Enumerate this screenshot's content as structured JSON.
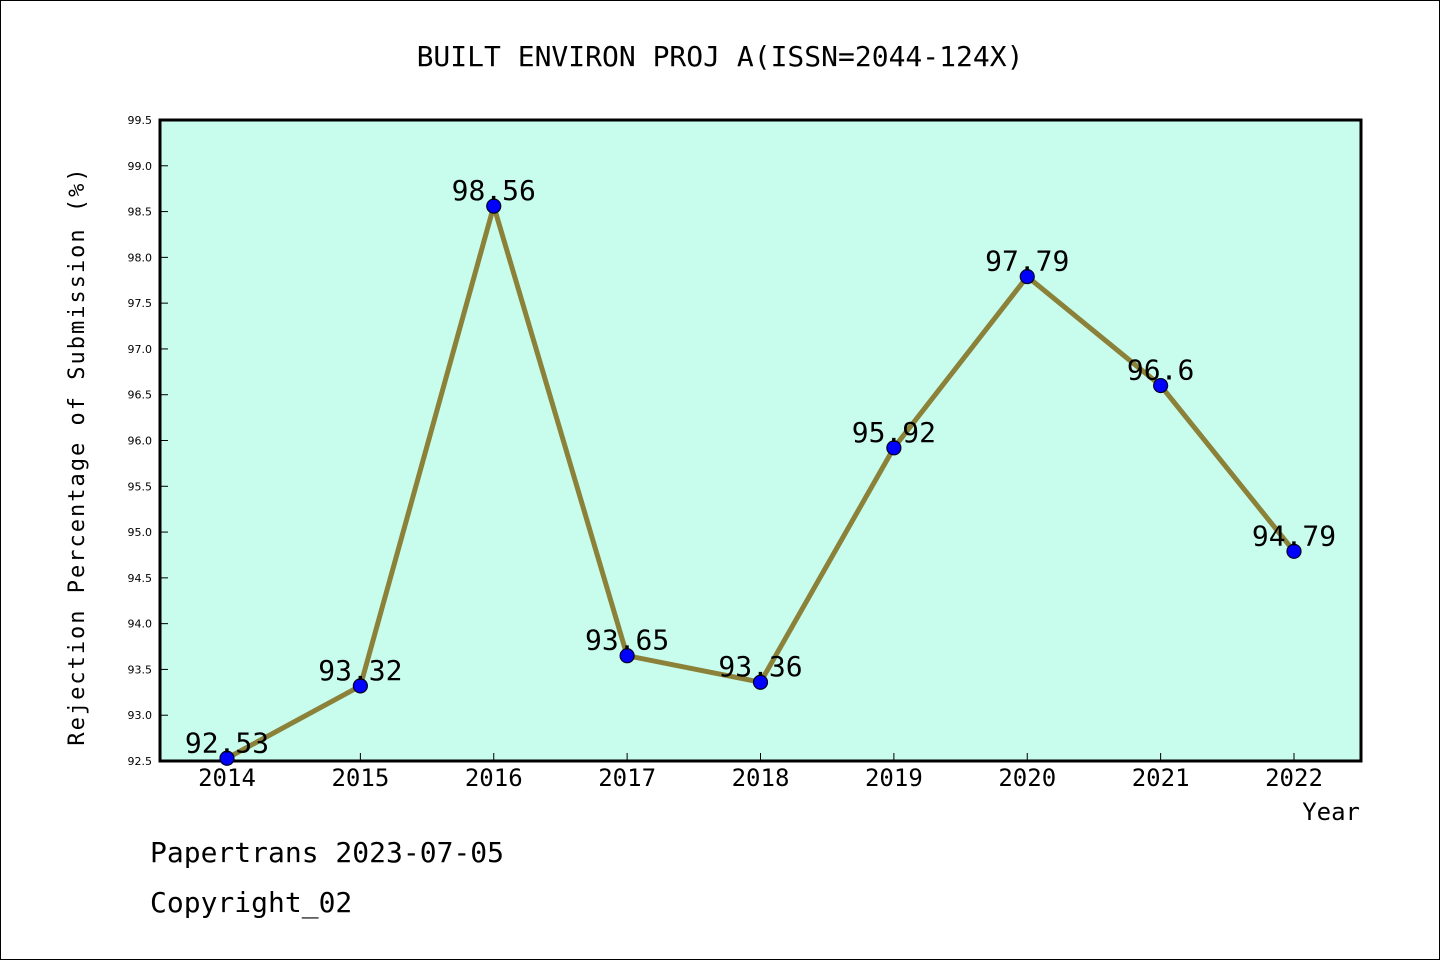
{
  "chart_data": {
    "type": "line",
    "title": "BUILT ENVIRON PROJ A(ISSN=2044-124X)",
    "xlabel": "Year",
    "ylabel": "Rejection Percentage of Submission (%)",
    "categories": [
      "2014",
      "2015",
      "2016",
      "2017",
      "2018",
      "2019",
      "2020",
      "2021",
      "2022"
    ],
    "values": [
      92.53,
      93.32,
      98.56,
      93.65,
      93.36,
      95.92,
      97.79,
      96.6,
      94.79
    ],
    "data_labels": [
      "92.53",
      "93.32",
      "98.56",
      "93.65",
      "93.36",
      "95.92",
      "97.79",
      "96.6",
      "94.79"
    ],
    "ylim": [
      92.5,
      99.5
    ],
    "yticks": [
      "92.5",
      "93.0",
      "93.5",
      "94.0",
      "94.5",
      "95.0",
      "95.5",
      "96.0",
      "96.5",
      "97.0",
      "97.5",
      "98.0",
      "98.5",
      "99.0",
      "99.5"
    ],
    "grid": false,
    "colors": {
      "plot_background": "#c8fcec",
      "line": "#8b8139",
      "marker": "#0000ff"
    }
  },
  "footer": {
    "line1": "Papertrans 2023-07-05",
    "line2": "Copyright_02"
  }
}
